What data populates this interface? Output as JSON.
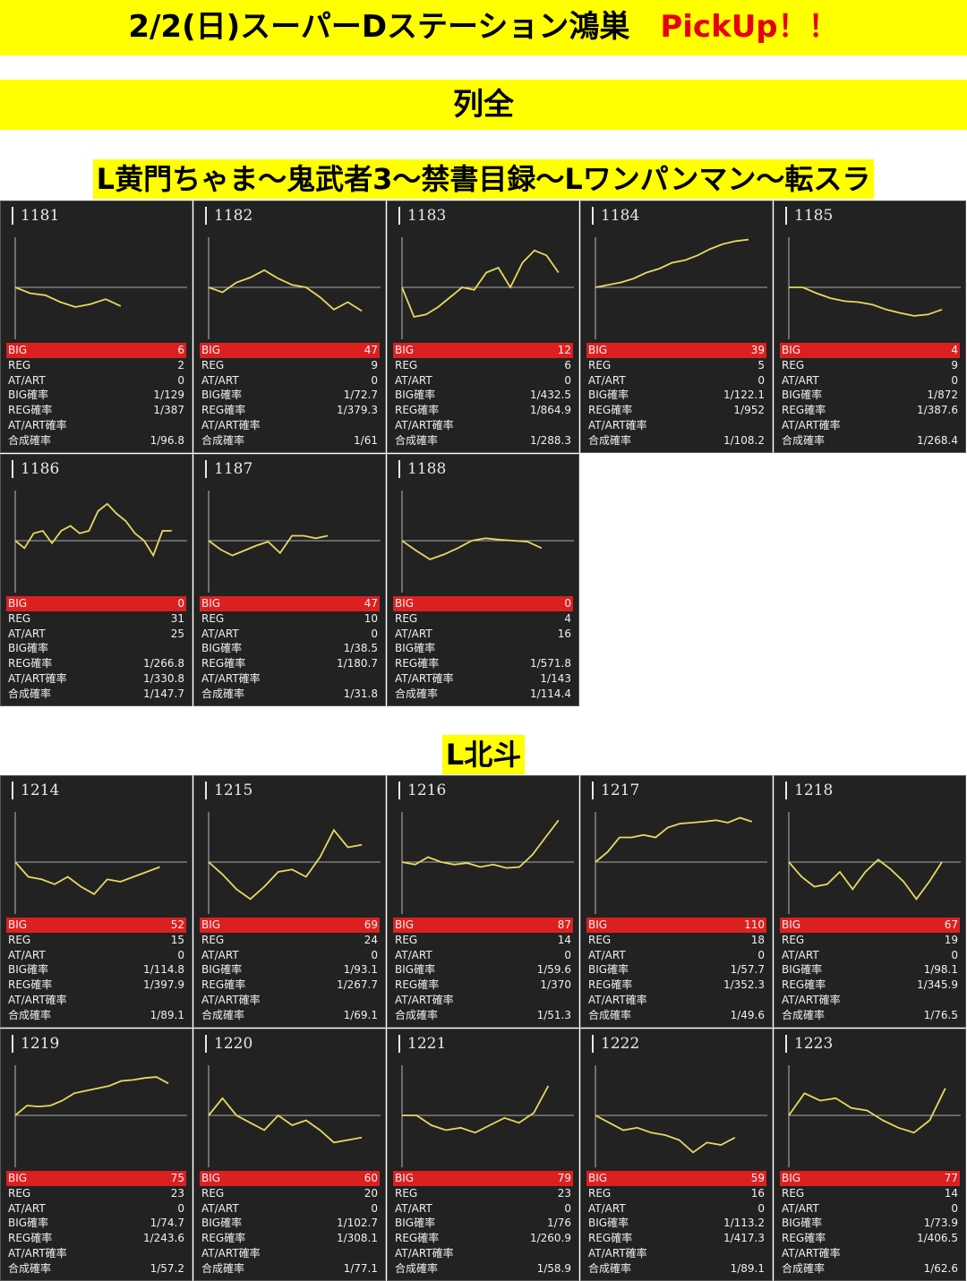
{
  "header": {
    "title": "2/2(日)スーパーDステーション鴻巣",
    "pickup": "PickUp！！",
    "subtitle": "列全"
  },
  "stat_labels": [
    "BIG",
    "REG",
    "AT/ART",
    "BIG確率",
    "REG確率",
    "AT/ART確率",
    "合成確率"
  ],
  "colors": {
    "banner": "#ffff00",
    "pickup": "#e60012",
    "card_bg": "#222222",
    "big_row": "#dc2020",
    "line": "#e8d860"
  },
  "sections": [
    {
      "title": "L黄門ちゃま～鬼武者3～禁書目録～Lワンパンマン～転スラ",
      "machines": [
        {
          "num": "1181",
          "stats": [
            "6",
            "2",
            "0",
            "1/129",
            "1/387",
            "",
            "1/96.8"
          ],
          "line": [
            0.0,
            -0.12,
            -0.16,
            -0.3,
            -0.4,
            -0.34,
            -0.24,
            -0.38
          ],
          "len": 0.62
        },
        {
          "num": "1182",
          "stats": [
            "47",
            "9",
            "0",
            "1/72.7",
            "1/379.3",
            "",
            "1/61"
          ],
          "line": [
            0.0,
            -0.1,
            0.1,
            0.2,
            0.35,
            0.18,
            0.05,
            0.0,
            -0.2,
            -0.45,
            -0.3,
            -0.48
          ],
          "len": 0.9
        },
        {
          "num": "1183",
          "stats": [
            "12",
            "6",
            "0",
            "1/432.5",
            "1/864.9",
            "",
            "1/288.3"
          ],
          "line": [
            0.0,
            -0.6,
            -0.55,
            -0.4,
            -0.2,
            0.0,
            -0.05,
            0.3,
            0.4,
            0.0,
            0.5,
            0.75,
            0.65,
            0.3
          ],
          "len": 0.92
        },
        {
          "num": "1184",
          "stats": [
            "39",
            "5",
            "0",
            "1/122.1",
            "1/952",
            "",
            "1/108.2"
          ],
          "line": [
            0.0,
            0.05,
            0.1,
            0.18,
            0.3,
            0.38,
            0.5,
            0.55,
            0.65,
            0.78,
            0.88,
            0.94,
            0.97
          ],
          "len": 0.9
        },
        {
          "num": "1185",
          "stats": [
            "4",
            "9",
            "0",
            "1/872",
            "1/387.6",
            "",
            "1/268.4"
          ],
          "line": [
            0.0,
            0.0,
            -0.12,
            -0.22,
            -0.28,
            -0.3,
            -0.35,
            -0.45,
            -0.52,
            -0.58,
            -0.55,
            -0.45
          ],
          "len": 0.9
        }
      ],
      "machines_row2": [
        {
          "num": "1186",
          "stats": [
            "0",
            "31",
            "25",
            "",
            "1/266.8",
            "1/330.8",
            "1/147.7"
          ],
          "line": [
            0.0,
            -0.15,
            0.15,
            0.2,
            -0.05,
            0.2,
            0.3,
            0.15,
            0.2,
            0.6,
            0.75,
            0.55,
            0.4,
            0.15,
            0.0,
            -0.3,
            0.2,
            0.2
          ],
          "len": 0.92
        },
        {
          "num": "1187",
          "stats": [
            "47",
            "10",
            "0",
            "1/38.5",
            "1/180.7",
            "",
            "1/31.8"
          ],
          "line": [
            0.0,
            -0.18,
            -0.3,
            -0.2,
            -0.1,
            -0.02,
            -0.25,
            0.1,
            0.1,
            0.05,
            0.1
          ],
          "len": 0.7
        },
        {
          "num": "1188",
          "stats": [
            "0",
            "4",
            "16",
            "",
            "1/571.8",
            "1/143",
            "1/114.4"
          ],
          "line": [
            0.0,
            -0.2,
            -0.38,
            -0.28,
            -0.15,
            0.0,
            0.05,
            0.02,
            0.0,
            -0.02,
            -0.15
          ],
          "len": 0.82
        }
      ]
    },
    {
      "title": "L北斗",
      "machines": [
        {
          "num": "1214",
          "stats": [
            "52",
            "15",
            "0",
            "1/114.8",
            "1/397.9",
            "",
            "1/89.1"
          ],
          "line": [
            0.0,
            -0.3,
            -0.35,
            -0.45,
            -0.3,
            -0.5,
            -0.65,
            -0.35,
            -0.4,
            -0.3,
            -0.2,
            -0.1
          ],
          "len": 0.85
        },
        {
          "num": "1215",
          "stats": [
            "69",
            "24",
            "0",
            "1/93.1",
            "1/267.7",
            "",
            "1/69.1"
          ],
          "line": [
            0.0,
            -0.25,
            -0.55,
            -0.75,
            -0.5,
            -0.2,
            -0.15,
            -0.3,
            0.1,
            0.65,
            0.3,
            0.35
          ],
          "len": 0.9
        },
        {
          "num": "1216",
          "stats": [
            "87",
            "14",
            "0",
            "1/59.6",
            "1/370",
            "",
            "1/51.3"
          ],
          "line": [
            0.0,
            -0.05,
            0.1,
            0.0,
            -0.05,
            -0.02,
            -0.1,
            -0.05,
            -0.12,
            -0.1,
            0.15,
            0.5,
            0.85
          ],
          "len": 0.92
        },
        {
          "num": "1217",
          "stats": [
            "110",
            "18",
            "0",
            "1/57.7",
            "1/352.3",
            "",
            "1/49.6"
          ],
          "line": [
            0.0,
            0.2,
            0.5,
            0.5,
            0.55,
            0.5,
            0.7,
            0.78,
            0.8,
            0.82,
            0.85,
            0.8,
            0.9,
            0.82
          ],
          "len": 0.92
        },
        {
          "num": "1218",
          "stats": [
            "67",
            "19",
            "0",
            "1/98.1",
            "1/345.9",
            "",
            "1/76.5"
          ],
          "line": [
            0.0,
            -0.3,
            -0.5,
            -0.45,
            -0.2,
            -0.55,
            -0.2,
            0.05,
            -0.15,
            -0.4,
            -0.75,
            -0.4,
            0.0
          ],
          "len": 0.9
        }
      ],
      "machines_row2": [
        {
          "num": "1219",
          "stats": [
            "75",
            "23",
            "0",
            "1/74.7",
            "1/243.6",
            "",
            "1/57.2"
          ],
          "line": [
            0.0,
            0.2,
            0.18,
            0.2,
            0.3,
            0.45,
            0.5,
            0.55,
            0.6,
            0.7,
            0.72,
            0.76,
            0.78,
            0.65
          ],
          "len": 0.9
        },
        {
          "num": "1220",
          "stats": [
            "60",
            "20",
            "0",
            "1/102.7",
            "1/308.1",
            "",
            "1/77.1"
          ],
          "line": [
            0.0,
            0.35,
            0.0,
            -0.15,
            -0.3,
            0.0,
            -0.2,
            -0.1,
            -0.3,
            -0.55,
            -0.5,
            -0.45
          ],
          "len": 0.9
        },
        {
          "num": "1221",
          "stats": [
            "79",
            "23",
            "0",
            "1/76",
            "1/260.9",
            "",
            "1/58.9"
          ],
          "line": [
            0.0,
            0.0,
            -0.2,
            -0.3,
            -0.25,
            -0.35,
            -0.2,
            -0.05,
            -0.15,
            0.05,
            0.6
          ],
          "len": 0.86
        },
        {
          "num": "1222",
          "stats": [
            "59",
            "16",
            "0",
            "1/113.2",
            "1/417.3",
            "",
            "1/89.1"
          ],
          "line": [
            0.0,
            -0.15,
            -0.3,
            -0.25,
            -0.35,
            -0.4,
            -0.5,
            -0.75,
            -0.55,
            -0.6,
            -0.45
          ],
          "len": 0.82
        },
        {
          "num": "1223",
          "stats": [
            "77",
            "14",
            "0",
            "1/73.9",
            "1/406.5",
            "",
            "1/62.6"
          ],
          "line": [
            0.0,
            0.45,
            0.3,
            0.35,
            0.15,
            0.1,
            -0.1,
            -0.25,
            -0.35,
            -0.1,
            0.55
          ],
          "len": 0.92
        }
      ]
    }
  ]
}
